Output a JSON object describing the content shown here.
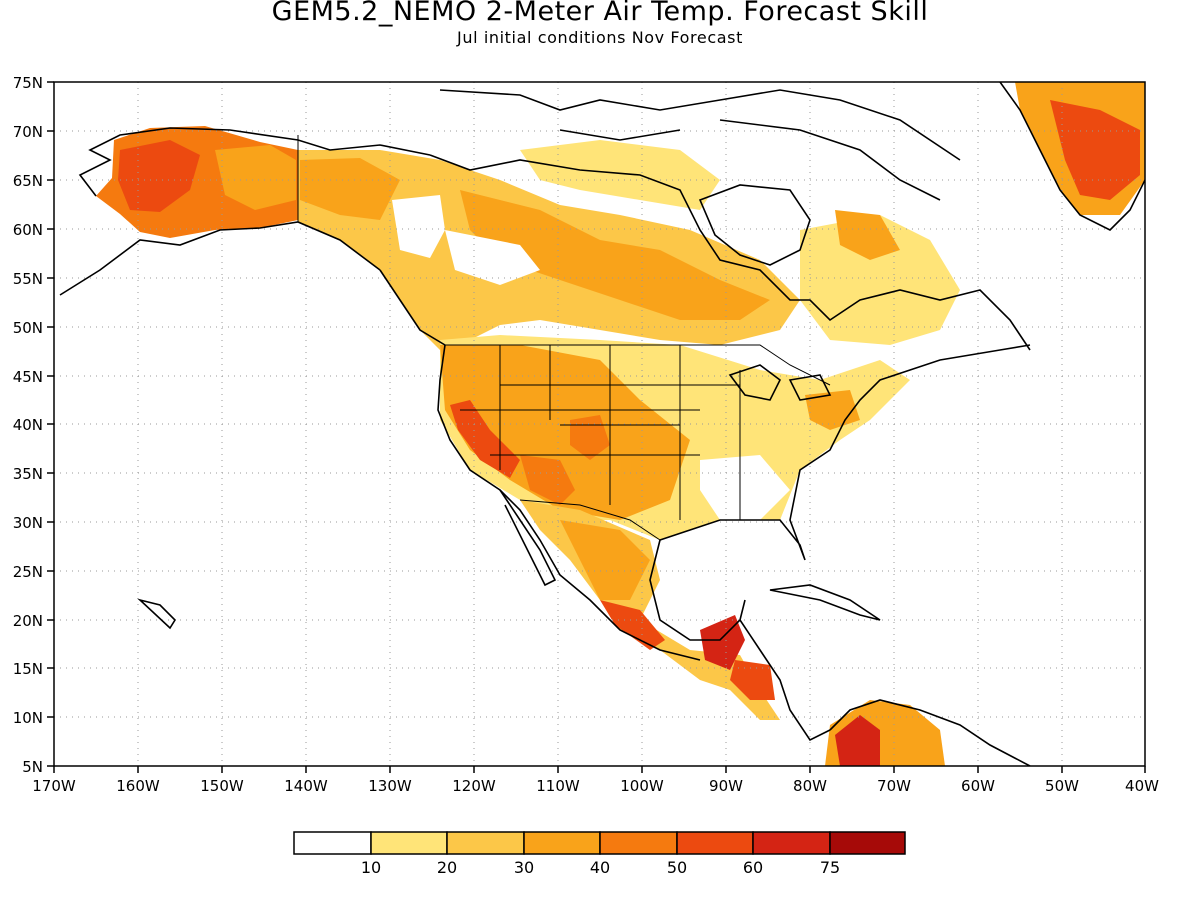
{
  "map": {
    "title": "GEM5.2_NEMO 2-Meter Air Temp. Forecast Skill",
    "subtitle": "Jul initial conditions   Nov Forecast",
    "lon_labels": [
      "170W",
      "160W",
      "150W",
      "140W",
      "130W",
      "120W",
      "110W",
      "100W",
      "90W",
      "80W",
      "70W",
      "60W",
      "50W",
      "40W"
    ],
    "lat_labels": [
      "75N",
      "70N",
      "65N",
      "60N",
      "55N",
      "50N",
      "45N",
      "40N",
      "35N",
      "30N",
      "25N",
      "20N",
      "15N",
      "10N",
      "5N"
    ],
    "region": "North America",
    "extent": {
      "lon": [
        -170,
        -40
      ],
      "lat": [
        5,
        75
      ]
    },
    "grid": "dotted"
  },
  "colorbar": {
    "colors": [
      "#ffffff",
      "#ffe478",
      "#fcc748",
      "#f9a31a",
      "#f57a0f",
      "#ec4a10",
      "#d42414",
      "#a60a08"
    ],
    "labels": [
      "10",
      "20",
      "30",
      "40",
      "50",
      "60",
      "75"
    ]
  }
}
